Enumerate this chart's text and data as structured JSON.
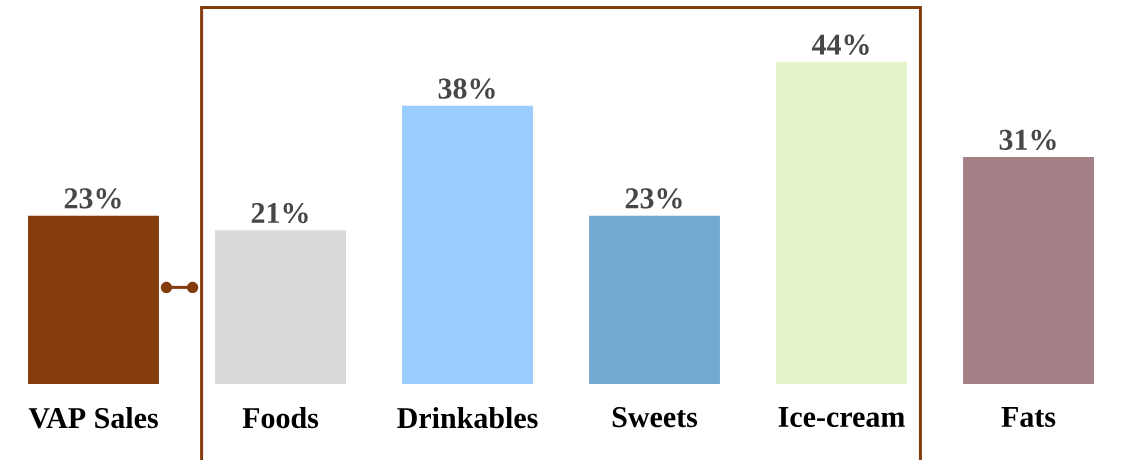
{
  "chart_data": {
    "type": "bar",
    "categories": [
      "VAP Sales",
      "Foods",
      "Drinkables",
      "Sweets",
      "Ice-cream",
      "Fats"
    ],
    "values": [
      23,
      21,
      38,
      23,
      44,
      31
    ],
    "colors": [
      "#843c0c",
      "#d9d9d9",
      "#99ccff",
      "#71a9d3",
      "#e6f5c9",
      "#a28086"
    ],
    "value_labels": [
      "23%",
      "21%",
      "38%",
      "23%",
      "44%",
      "31%"
    ]
  }
}
